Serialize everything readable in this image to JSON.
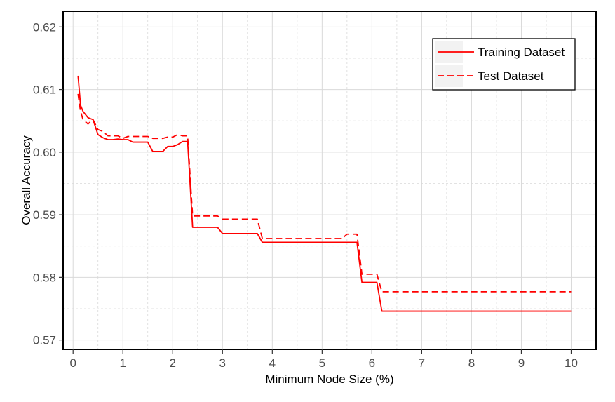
{
  "chart_data": {
    "type": "line",
    "title": "",
    "xlabel": "Minimum Node Size (%)",
    "ylabel": "Overall Accuracy",
    "xlim": [
      -0.2,
      10.5
    ],
    "ylim": [
      0.5685,
      0.6225
    ],
    "x_ticks": [
      0,
      1,
      2,
      3,
      4,
      5,
      6,
      7,
      8,
      9,
      10
    ],
    "y_ticks": [
      0.57,
      0.58,
      0.59,
      0.6,
      0.61,
      0.62
    ],
    "x_tick_labels": [
      "0",
      "1",
      "2",
      "3",
      "4",
      "5",
      "6",
      "7",
      "8",
      "9",
      "10"
    ],
    "y_tick_labels": [
      "0.57",
      "0.58",
      "0.59",
      "0.60",
      "0.61",
      "0.62"
    ],
    "grid": true,
    "legend_position": "top-right",
    "series": [
      {
        "name": "Training Dataset",
        "color": "#ff0000",
        "dash": "solid",
        "points": [
          [
            0.1,
            0.6122
          ],
          [
            0.15,
            0.6075
          ],
          [
            0.2,
            0.6065
          ],
          [
            0.3,
            0.6055
          ],
          [
            0.4,
            0.6052
          ],
          [
            0.5,
            0.6028
          ],
          [
            0.6,
            0.6023
          ],
          [
            0.7,
            0.602
          ],
          [
            0.8,
            0.602
          ],
          [
            0.9,
            0.6021
          ],
          [
            1.0,
            0.602
          ],
          [
            1.1,
            0.602
          ],
          [
            1.2,
            0.6016
          ],
          [
            1.3,
            0.6016
          ],
          [
            1.4,
            0.6016
          ],
          [
            1.5,
            0.6016
          ],
          [
            1.6,
            0.6001
          ],
          [
            1.7,
            0.6001
          ],
          [
            1.8,
            0.6001
          ],
          [
            1.9,
            0.6009
          ],
          [
            2.0,
            0.6009
          ],
          [
            2.1,
            0.6012
          ],
          [
            2.2,
            0.6017
          ],
          [
            2.3,
            0.6017
          ],
          [
            2.4,
            0.588
          ],
          [
            2.5,
            0.588
          ],
          [
            2.6,
            0.588
          ],
          [
            2.7,
            0.588
          ],
          [
            2.8,
            0.588
          ],
          [
            2.9,
            0.588
          ],
          [
            3.0,
            0.587
          ],
          [
            3.1,
            0.587
          ],
          [
            3.2,
            0.587
          ],
          [
            3.3,
            0.587
          ],
          [
            3.4,
            0.587
          ],
          [
            3.5,
            0.587
          ],
          [
            3.6,
            0.587
          ],
          [
            3.7,
            0.587
          ],
          [
            3.8,
            0.5856
          ],
          [
            3.9,
            0.5856
          ],
          [
            4.0,
            0.5856
          ],
          [
            4.5,
            0.5856
          ],
          [
            5.0,
            0.5856
          ],
          [
            5.5,
            0.5856
          ],
          [
            5.6,
            0.5856
          ],
          [
            5.7,
            0.5856
          ],
          [
            5.8,
            0.5792
          ],
          [
            5.9,
            0.5792
          ],
          [
            6.0,
            0.5792
          ],
          [
            6.1,
            0.5792
          ],
          [
            6.2,
            0.5746
          ],
          [
            6.5,
            0.5746
          ],
          [
            7.0,
            0.5746
          ],
          [
            8.0,
            0.5746
          ],
          [
            9.0,
            0.5746
          ],
          [
            10.0,
            0.5746
          ]
        ]
      },
      {
        "name": "Test Dataset",
        "color": "#ff0000",
        "dash": "dashed",
        "points": [
          [
            0.1,
            0.6093
          ],
          [
            0.15,
            0.6065
          ],
          [
            0.2,
            0.6052
          ],
          [
            0.3,
            0.6045
          ],
          [
            0.4,
            0.6052
          ],
          [
            0.5,
            0.6036
          ],
          [
            0.6,
            0.6033
          ],
          [
            0.7,
            0.6026
          ],
          [
            0.8,
            0.6026
          ],
          [
            0.9,
            0.6026
          ],
          [
            1.0,
            0.6022
          ],
          [
            1.1,
            0.6025
          ],
          [
            1.2,
            0.6025
          ],
          [
            1.3,
            0.6025
          ],
          [
            1.4,
            0.6025
          ],
          [
            1.5,
            0.6025
          ],
          [
            1.6,
            0.6022
          ],
          [
            1.7,
            0.6022
          ],
          [
            1.8,
            0.6022
          ],
          [
            1.9,
            0.6024
          ],
          [
            2.0,
            0.6024
          ],
          [
            2.1,
            0.6028
          ],
          [
            2.2,
            0.6026
          ],
          [
            2.3,
            0.6026
          ],
          [
            2.4,
            0.5898
          ],
          [
            2.5,
            0.5898
          ],
          [
            2.6,
            0.5898
          ],
          [
            2.7,
            0.5898
          ],
          [
            2.8,
            0.5898
          ],
          [
            2.9,
            0.5898
          ],
          [
            3.0,
            0.5893
          ],
          [
            3.1,
            0.5893
          ],
          [
            3.2,
            0.5893
          ],
          [
            3.3,
            0.5893
          ],
          [
            3.4,
            0.5893
          ],
          [
            3.5,
            0.5893
          ],
          [
            3.6,
            0.5893
          ],
          [
            3.7,
            0.5893
          ],
          [
            3.8,
            0.5862
          ],
          [
            3.9,
            0.5862
          ],
          [
            4.0,
            0.5862
          ],
          [
            4.5,
            0.5862
          ],
          [
            5.0,
            0.5862
          ],
          [
            5.4,
            0.5862
          ],
          [
            5.5,
            0.5869
          ],
          [
            5.6,
            0.5869
          ],
          [
            5.7,
            0.5869
          ],
          [
            5.8,
            0.5805
          ],
          [
            5.9,
            0.5805
          ],
          [
            6.0,
            0.5805
          ],
          [
            6.1,
            0.5805
          ],
          [
            6.2,
            0.5777
          ],
          [
            6.5,
            0.5777
          ],
          [
            7.0,
            0.5777
          ],
          [
            8.0,
            0.5777
          ],
          [
            9.0,
            0.5777
          ],
          [
            10.0,
            0.5777
          ]
        ]
      }
    ]
  }
}
